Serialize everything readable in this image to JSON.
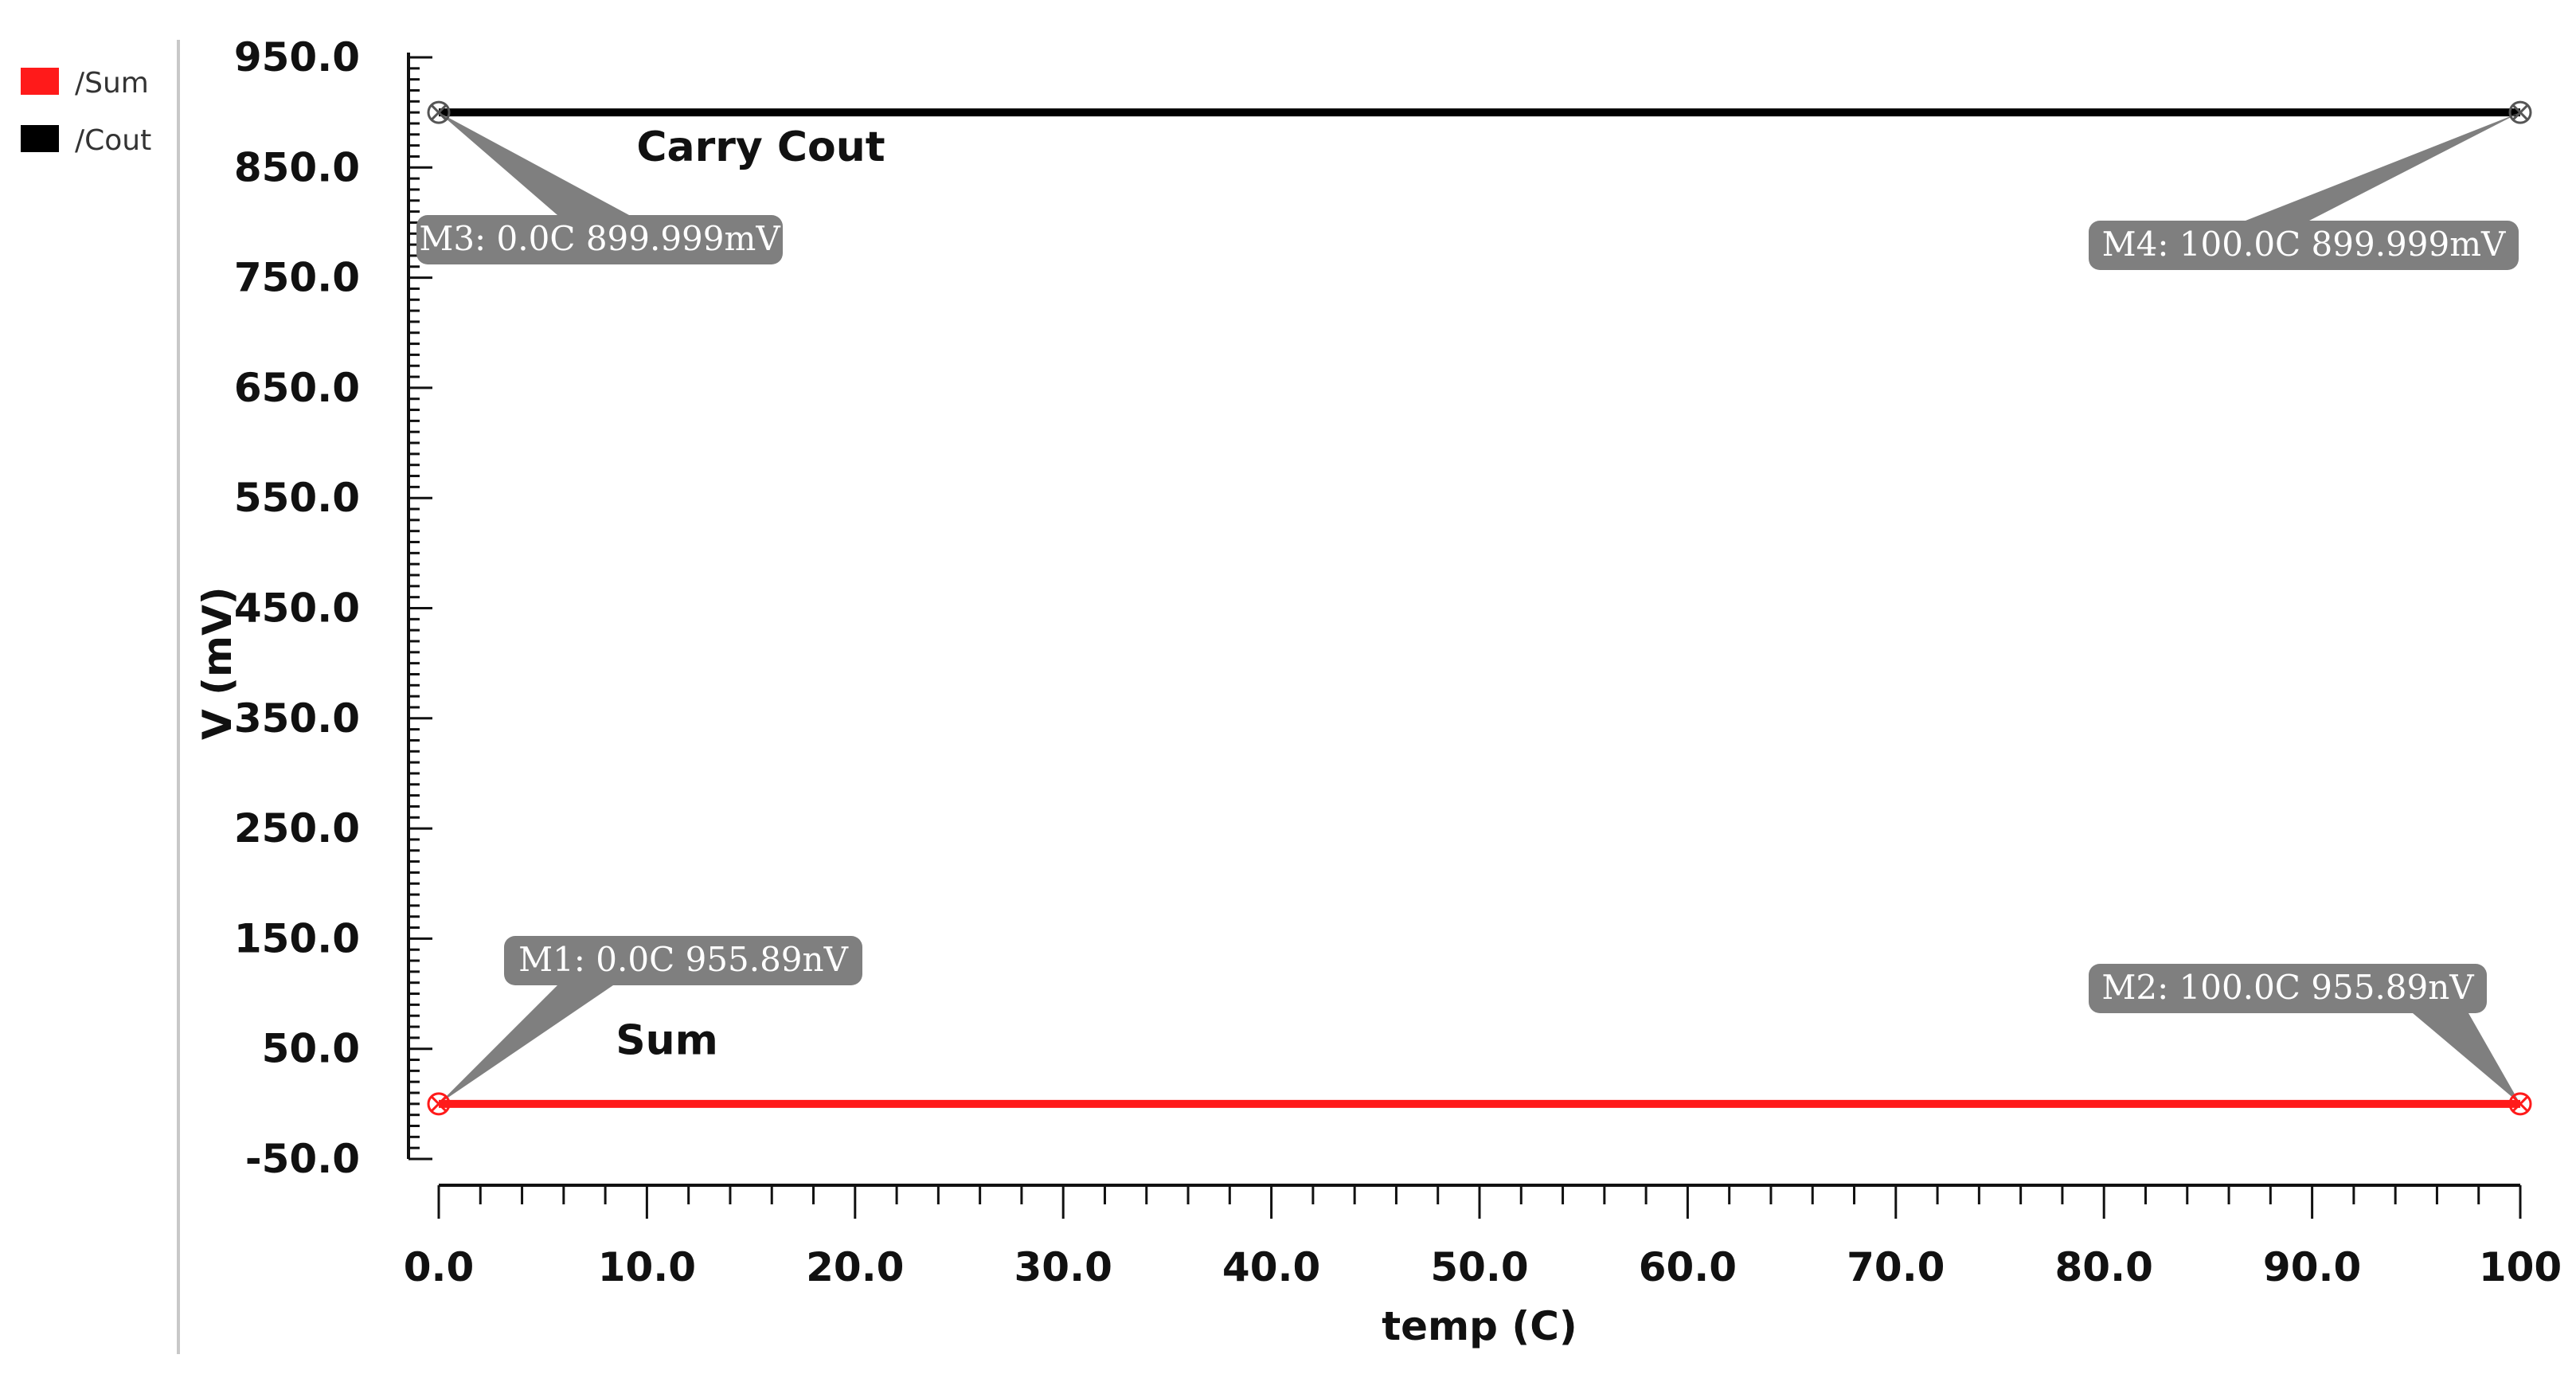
{
  "chart_data": {
    "type": "line",
    "xlabel": "temp (C)",
    "ylabel": "V (mV)",
    "xlim": [
      0,
      100
    ],
    "ylim": [
      -50,
      950
    ],
    "x_ticks": [
      0,
      10,
      20,
      30,
      40,
      50,
      60,
      70,
      80,
      90,
      100
    ],
    "x_tick_labels": [
      "0.0",
      "10.0",
      "20.0",
      "30.0",
      "40.0",
      "50.0",
      "60.0",
      "70.0",
      "80.0",
      "90.0",
      "100"
    ],
    "y_ticks": [
      950,
      850,
      750,
      650,
      550,
      450,
      350,
      250,
      150,
      50,
      -50
    ],
    "y_tick_labels": [
      "950.0",
      "850.0",
      "750.0",
      "650.0",
      "550.0",
      "450.0",
      "350.0",
      "250.0",
      "150.0",
      "50.0",
      "-50.0"
    ],
    "legend": {
      "placement": "left",
      "entries": [
        {
          "label": "/Sum",
          "color": "#ff1a1a"
        },
        {
          "label": "/Cout",
          "color": "#000000"
        }
      ]
    },
    "series": [
      {
        "name": "/Sum",
        "color": "#ff1a1a",
        "x": [
          0,
          100
        ],
        "y": [
          0.00095589,
          0.00095589
        ]
      },
      {
        "name": "/Cout",
        "color": "#000000",
        "x": [
          0,
          100
        ],
        "y": [
          899.999,
          899.999
        ]
      }
    ],
    "annotations": [
      {
        "text": "Carry Cout",
        "x": 9.5,
        "y": 856
      },
      {
        "text": "Sum",
        "x": 8.5,
        "y": 45
      }
    ],
    "markers": [
      {
        "id": "M1",
        "text": "M1: 0.0C 955.89nV",
        "x": 0,
        "y": 0.00095589,
        "color": "#ff1a1a"
      },
      {
        "id": "M2",
        "text": "M2: 100.0C 955.89nV",
        "x": 100,
        "y": 0.00095589,
        "color": "#ff1a1a"
      },
      {
        "id": "M3",
        "text": "M3: 0.0C 899.999mV",
        "x": 0,
        "y": 899.999,
        "color": "#000000"
      },
      {
        "id": "M4",
        "text": "M4: 100.0C 899.999mV",
        "x": 100,
        "y": 899.999,
        "color": "#000000"
      }
    ],
    "grid": false
  }
}
